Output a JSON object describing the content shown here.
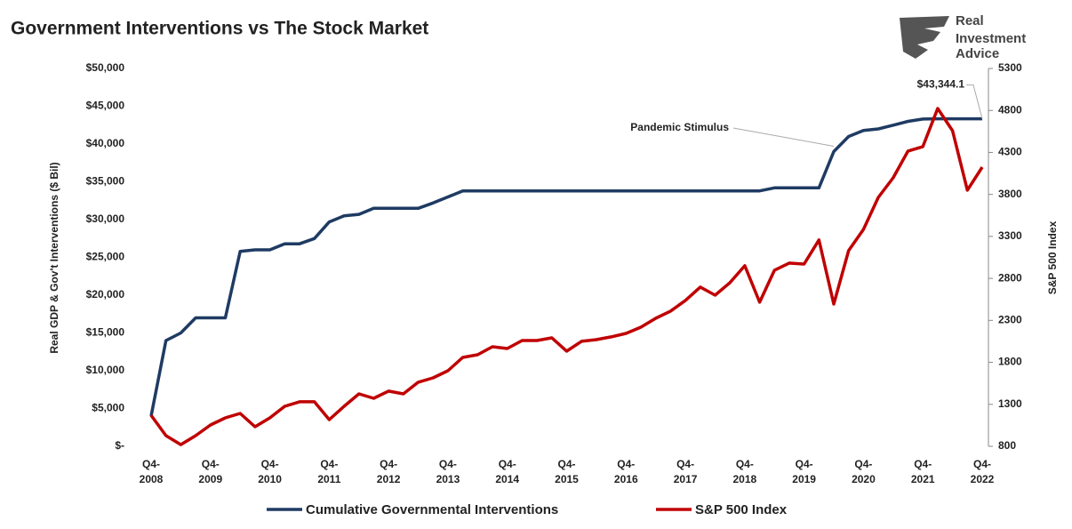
{
  "chart_data": {
    "type": "line",
    "title": "Government Interventions vs The Stock Market",
    "logo": [
      "Real",
      "Investment",
      "Advice"
    ],
    "ylabel": "Real GDP & Gov't Interventions ($ Bil)",
    "y2label": "S&P 500 Index",
    "categories": [
      "Q4-2008",
      null,
      null,
      null,
      "Q4-2009",
      null,
      null,
      null,
      "Q4-2010",
      null,
      null,
      null,
      "Q4-2011",
      null,
      null,
      null,
      "Q4-2012",
      null,
      null,
      null,
      "Q4-2013",
      null,
      null,
      null,
      "Q4-2014",
      null,
      null,
      null,
      "Q4-2015",
      null,
      null,
      null,
      "Q4-2016",
      null,
      null,
      null,
      "Q4-2017",
      null,
      null,
      null,
      "Q4-2018",
      null,
      null,
      null,
      "Q4-2019",
      null,
      null,
      null,
      "Q4-2020",
      null,
      null,
      null,
      "Q4-2021",
      null,
      null,
      null,
      "Q4-2022"
    ],
    "series": [
      {
        "name": "Cumulative Governmental Interventions",
        "color": "#1f3b63",
        "axis": "y",
        "values": [
          4000,
          14000,
          15000,
          17000,
          17000,
          17000,
          25800,
          26000,
          26000,
          26800,
          26800,
          27500,
          29700,
          30500,
          30700,
          31500,
          31500,
          31500,
          31500,
          32200,
          33000,
          33800,
          33800,
          33800,
          33800,
          33800,
          33800,
          33800,
          33800,
          33800,
          33800,
          33800,
          33800,
          33800,
          33800,
          33800,
          33800,
          33800,
          33800,
          33800,
          33800,
          33800,
          34200,
          34200,
          34200,
          34200,
          39000,
          41000,
          41800,
          42000,
          42500,
          43000,
          43300,
          43344.1,
          43344.1,
          43344.1,
          43344.1
        ],
        "value_labels": [
          null,
          null,
          null,
          null,
          null,
          null,
          null,
          null,
          null,
          null,
          null,
          null,
          null,
          null,
          null,
          null,
          null,
          null,
          null,
          null,
          null,
          null,
          null,
          null,
          null,
          null,
          null,
          null,
          null,
          null,
          null,
          null,
          null,
          null,
          null,
          null,
          null,
          null,
          null,
          null,
          null,
          null,
          null,
          null,
          null,
          null,
          null,
          null,
          null,
          null,
          null,
          null,
          null,
          null,
          null,
          null,
          "$43,344.1"
        ]
      },
      {
        "name": "S&P 500 Index",
        "color": "#c00000",
        "axis": "y2",
        "values": [
          1170,
          927,
          820,
          927,
          1054,
          1139,
          1192,
          1033,
          1139,
          1276,
          1330,
          1330,
          1118,
          1276,
          1425,
          1372,
          1457,
          1425,
          1563,
          1615,
          1700,
          1859,
          1891,
          1986,
          1965,
          2060,
          2060,
          2092,
          1933,
          2050,
          2071,
          2103,
          2145,
          2219,
          2325,
          2410,
          2537,
          2696,
          2600,
          2749,
          2950,
          2516,
          2897,
          2982,
          2971,
          3257,
          2494,
          3130,
          3384,
          3765,
          3998,
          4316,
          4369,
          4824,
          4559,
          3850,
          4125
        ]
      }
    ],
    "annotations": [
      {
        "text": "Pandemic Stimulus",
        "index": 46
      }
    ],
    "ylim": [
      0,
      50000
    ],
    "yticks": [
      {
        "value": 0,
        "label": "$-"
      },
      {
        "value": 5000,
        "label": "$5,000"
      },
      {
        "value": 10000,
        "label": "$10,000"
      },
      {
        "value": 15000,
        "label": "$15,000"
      },
      {
        "value": 20000,
        "label": "$20,000"
      },
      {
        "value": 25000,
        "label": "$25,000"
      },
      {
        "value": 30000,
        "label": "$30,000"
      },
      {
        "value": 35000,
        "label": "$35,000"
      },
      {
        "value": 40000,
        "label": "$40,000"
      },
      {
        "value": 45000,
        "label": "$45,000"
      },
      {
        "value": 50000,
        "label": "$50,000"
      }
    ],
    "y2lim": [
      800,
      5300
    ],
    "y2ticks": [
      800,
      1300,
      1800,
      2300,
      2800,
      3300,
      3800,
      4300,
      4800,
      5300
    ],
    "legend": "bottom"
  }
}
